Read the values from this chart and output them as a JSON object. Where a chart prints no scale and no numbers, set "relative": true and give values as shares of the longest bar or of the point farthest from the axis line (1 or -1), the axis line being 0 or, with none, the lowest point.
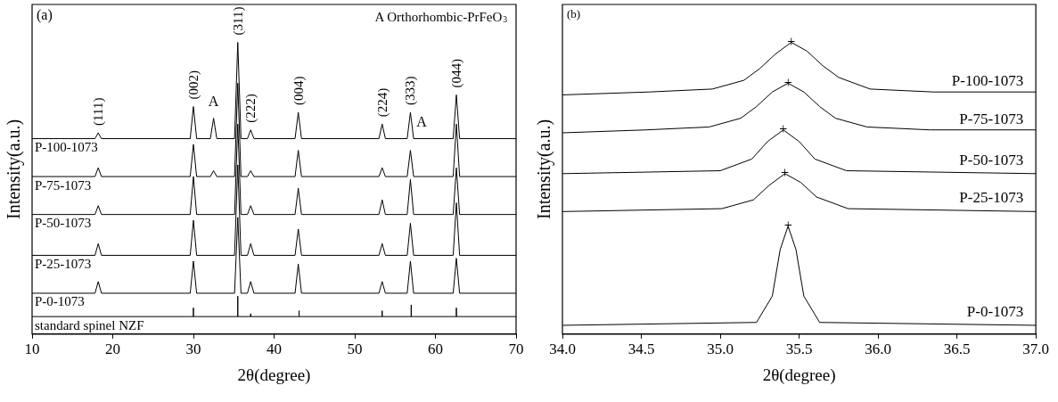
{
  "chart_data": [
    {
      "type": "line",
      "relative": true,
      "xlabel": "2θ(degree)",
      "ylabel": "Intensity(a.u.)",
      "xlim": [
        10,
        70
      ],
      "xticks": [
        10,
        20,
        30,
        40,
        50,
        60,
        70
      ],
      "annotations": [
        "(a)",
        "A Orthorhombic-PrFeO$_{3}$",
        {
          "text": "(111)",
          "x": 18.2,
          "y": 0.69
        },
        {
          "text": "(002)",
          "x": 30.0,
          "y": 0.78
        },
        {
          "text": "A",
          "x": 32.5,
          "y": 0.74
        },
        {
          "text": "(311)",
          "x": 35.5,
          "y": 1
        },
        {
          "text": "(222)",
          "x": 37.1,
          "y": 0.7
        },
        {
          "text": "(004)",
          "x": 43.0,
          "y": 0.76
        },
        {
          "text": "(224)",
          "x": 53.4,
          "y": 0.72
        },
        {
          "text": "(333)",
          "x": 56.9,
          "y": 0.76
        },
        {
          "text": "A",
          "x": 58.3,
          "y": 0.67
        },
        {
          "text": "(044)",
          "x": 62.6,
          "y": 0.82
        }
      ],
      "series": [
        {
          "name": "P-100-1073",
          "color": "#000000",
          "x": [
            10,
            17.8,
            18.2,
            18.6,
            29.6,
            30.0,
            30.4,
            32.1,
            32.5,
            32.9,
            35.1,
            35.5,
            35.9,
            36.7,
            37.1,
            37.5,
            42.6,
            43.0,
            43.4,
            53.0,
            53.4,
            53.8,
            56.5,
            56.9,
            57.3,
            62.2,
            62.6,
            63.0,
            70
          ],
          "values": [
            0.67,
            0.67,
            0.69,
            0.67,
            0.67,
            0.78,
            0.67,
            0.67,
            0.74,
            0.67,
            0.67,
            1,
            0.67,
            0.67,
            0.7,
            0.67,
            0.67,
            0.76,
            0.67,
            0.67,
            0.72,
            0.67,
            0.67,
            0.76,
            0.67,
            0.67,
            0.82,
            0.67,
            0.67
          ]
        },
        {
          "name": "P-75-1073",
          "color": "#000000",
          "x": [
            10,
            17.8,
            18.2,
            18.6,
            29.6,
            30.0,
            30.4,
            32.1,
            32.5,
            32.9,
            35.1,
            35.5,
            35.9,
            36.7,
            37.1,
            37.5,
            42.6,
            43.0,
            43.4,
            53.0,
            53.4,
            53.8,
            56.5,
            56.9,
            57.3,
            62.2,
            62.6,
            63.0,
            70
          ],
          "values": [
            0.54,
            0.54,
            0.57,
            0.54,
            0.54,
            0.65,
            0.54,
            0.54,
            0.56,
            0.54,
            0.54,
            0.86,
            0.54,
            0.54,
            0.56,
            0.54,
            0.54,
            0.63,
            0.54,
            0.54,
            0.57,
            0.54,
            0.54,
            0.63,
            0.54,
            0.54,
            0.72,
            0.54,
            0.54
          ]
        },
        {
          "name": "P-50-1073",
          "color": "#000000",
          "x": [
            10,
            17.8,
            18.2,
            18.6,
            29.6,
            30.0,
            30.4,
            35.1,
            35.5,
            35.9,
            36.7,
            37.1,
            37.5,
            42.6,
            43.0,
            43.4,
            53.0,
            53.4,
            53.8,
            56.5,
            56.9,
            57.3,
            62.2,
            62.6,
            63.0,
            70
          ],
          "values": [
            0.41,
            0.41,
            0.44,
            0.41,
            0.41,
            0.54,
            0.41,
            0.41,
            0.72,
            0.41,
            0.41,
            0.44,
            0.41,
            0.41,
            0.5,
            0.41,
            0.41,
            0.46,
            0.41,
            0.41,
            0.53,
            0.41,
            0.41,
            0.57,
            0.41,
            0.41
          ]
        },
        {
          "name": "P-25-1073",
          "color": "#000000",
          "x": [
            10,
            17.8,
            18.2,
            18.6,
            29.6,
            30.0,
            30.4,
            35.1,
            35.5,
            35.9,
            36.7,
            37.1,
            37.5,
            42.6,
            43.0,
            43.4,
            53.0,
            53.4,
            53.8,
            56.5,
            56.9,
            57.3,
            62.2,
            62.6,
            63.0,
            70
          ],
          "values": [
            0.27,
            0.27,
            0.31,
            0.27,
            0.27,
            0.39,
            0.27,
            0.27,
            0.58,
            0.27,
            0.27,
            0.31,
            0.27,
            0.27,
            0.36,
            0.27,
            0.27,
            0.31,
            0.27,
            0.27,
            0.38,
            0.27,
            0.27,
            0.45,
            0.27,
            0.27
          ]
        },
        {
          "name": "P-0-1073",
          "color": "#000000",
          "x": [
            10,
            17.8,
            18.2,
            18.6,
            29.6,
            30.0,
            30.4,
            35.1,
            35.5,
            35.9,
            36.7,
            37.1,
            37.5,
            42.6,
            43.0,
            43.4,
            53.0,
            53.4,
            53.8,
            56.5,
            56.9,
            57.3,
            62.2,
            62.6,
            63.0,
            70
          ],
          "values": [
            0.14,
            0.14,
            0.18,
            0.14,
            0.14,
            0.25,
            0.14,
            0.14,
            0.4,
            0.14,
            0.14,
            0.18,
            0.14,
            0.14,
            0.24,
            0.14,
            0.14,
            0.18,
            0.14,
            0.14,
            0.25,
            0.14,
            0.14,
            0.26,
            0.14,
            0.14
          ]
        },
        {
          "name": "standard spinel NZF",
          "color": "#000000",
          "x": [
            10,
            30.0,
            30.0,
            30.0,
            35.5,
            35.5,
            35.5,
            37.1,
            37.1,
            37.1,
            43.1,
            43.1,
            43.1,
            53.4,
            53.4,
            53.4,
            57.0,
            57.0,
            57.0,
            62.6,
            62.6,
            62.6,
            70
          ],
          "values": [
            0.06,
            0.06,
            0.09,
            0.06,
            0.06,
            0.13,
            0.06,
            0.06,
            0.07,
            0.06,
            0.06,
            0.08,
            0.06,
            0.06,
            0.08,
            0.06,
            0.06,
            0.1,
            0.06,
            0.06,
            0.09,
            0.06,
            0.06
          ]
        }
      ]
    },
    {
      "type": "line",
      "relative": true,
      "xlabel": "2θ(degree)",
      "ylabel": "Intensity(a.u.)",
      "xlim": [
        34.0,
        37.0
      ],
      "xticks": [
        {
          "value": 34,
          "label": "34.0"
        },
        34.5,
        {
          "value": 35,
          "label": "35.0"
        },
        35.5,
        {
          "value": 36,
          "label": "36.0"
        },
        36.5,
        {
          "value": 37,
          "label": "37.0"
        }
      ],
      "annotations": [
        "(b)",
        {
          "text": "+",
          "x": 35.45,
          "y": 1
        },
        {
          "text": "+",
          "x": 35.43,
          "y": 0.86
        },
        {
          "text": "+",
          "x": 35.4,
          "y": 0.7
        },
        {
          "text": "+",
          "x": 35.41,
          "y": 0.55
        },
        {
          "text": "+",
          "x": 35.43,
          "y": 0.37
        }
      ],
      "series": [
        {
          "name": "P-100-1073",
          "color": "#000000",
          "x": [
            34.0,
            34.55,
            34.95,
            35.15,
            35.25,
            35.35,
            35.45,
            35.55,
            35.65,
            35.75,
            35.95,
            36.35,
            37.0
          ],
          "values": [
            0.82,
            0.83,
            0.84,
            0.87,
            0.91,
            0.96,
            1,
            0.97,
            0.92,
            0.88,
            0.84,
            0.83,
            0.83
          ]
        },
        {
          "name": "P-75-1073",
          "color": "#000000",
          "x": [
            34.0,
            34.53,
            34.93,
            35.13,
            35.23,
            35.33,
            35.43,
            35.53,
            35.63,
            35.73,
            35.93,
            36.33,
            37.0
          ],
          "values": [
            0.69,
            0.7,
            0.71,
            0.74,
            0.78,
            0.83,
            0.86,
            0.83,
            0.78,
            0.74,
            0.71,
            0.7,
            0.7
          ]
        },
        {
          "name": "P-50-1073",
          "color": "#000000",
          "x": [
            34.0,
            35.0,
            35.2,
            35.3,
            35.4,
            35.5,
            35.6,
            35.8,
            37.0
          ],
          "values": [
            0.55,
            0.56,
            0.6,
            0.66,
            0.7,
            0.66,
            0.6,
            0.56,
            0.55
          ]
        },
        {
          "name": "P-25-1073",
          "color": "#000000",
          "x": [
            34.0,
            35.01,
            35.21,
            35.31,
            35.41,
            35.51,
            35.61,
            35.81,
            37.0
          ],
          "values": [
            0.42,
            0.43,
            0.46,
            0.51,
            0.55,
            0.52,
            0.47,
            0.43,
            0.42
          ]
        },
        {
          "name": "P-0-1073",
          "color": "#000000",
          "x": [
            34.0,
            35.23,
            35.33,
            35.38,
            35.43,
            35.48,
            35.53,
            35.63,
            37.0
          ],
          "values": [
            0.03,
            0.04,
            0.13,
            0.29,
            0.37,
            0.29,
            0.13,
            0.04,
            0.03
          ]
        }
      ]
    }
  ]
}
